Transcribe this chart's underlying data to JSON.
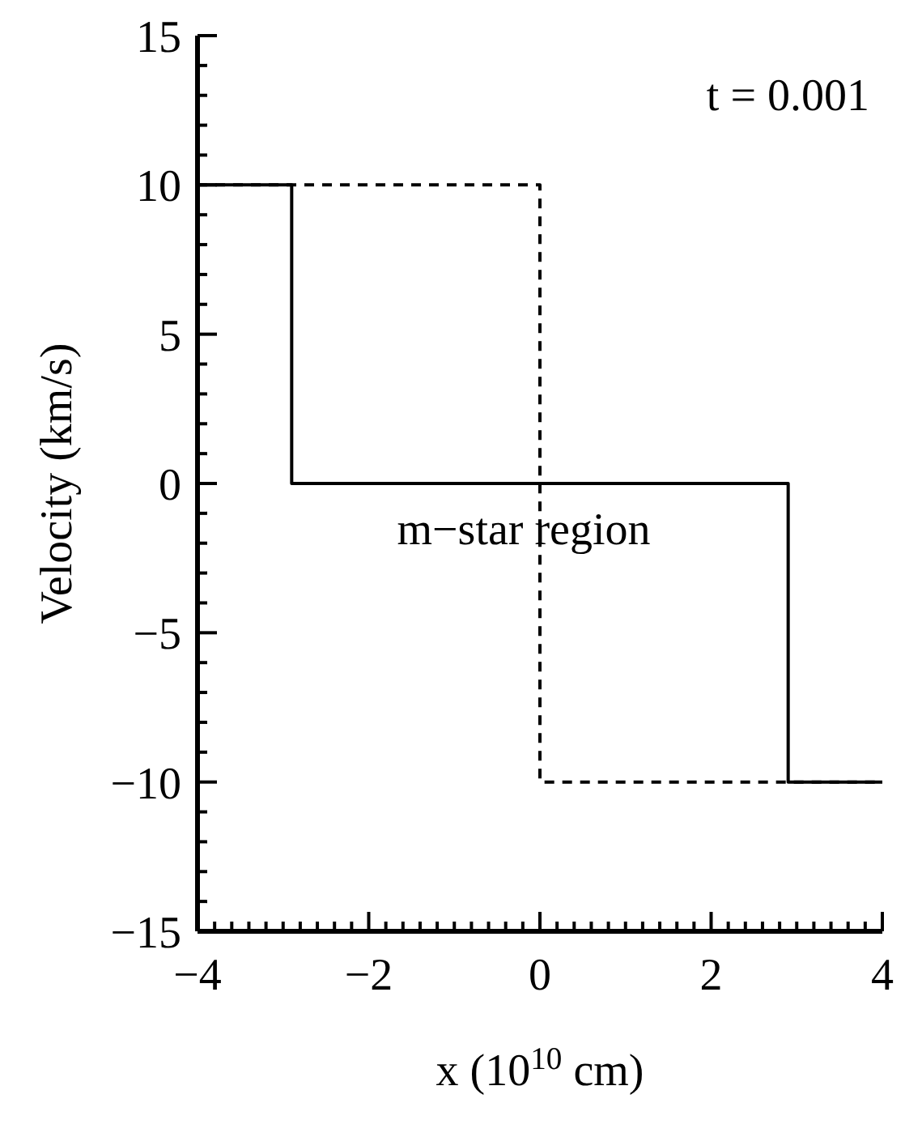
{
  "chart_data": {
    "type": "step",
    "xlabel": "x (10$^{10}$ cm)",
    "ylabel": "Velocity (km/s)",
    "annotations": [
      "t = 0.001",
      "m−star region"
    ],
    "series": [
      {
        "x": [
          -4,
          -2.9,
          2.9,
          4
        ],
        "values": [
          10,
          0,
          -10,
          -10
        ],
        "color": "#000000",
        "line_style": "solid"
      },
      {
        "x": [
          -4,
          0,
          4
        ],
        "values": [
          10,
          -10,
          -10
        ],
        "color": "#000000",
        "line_style": "dashed"
      }
    ],
    "xlim": [
      -4,
      4
    ],
    "xticks": [
      -4,
      {
        "value": -3.8,
        "label": null
      },
      {
        "value": -3.6,
        "label": null
      },
      {
        "value": -3.4,
        "label": null
      },
      {
        "value": -3.2,
        "label": null
      },
      {
        "value": -3,
        "label": null
      },
      {
        "value": -2.8,
        "label": null
      },
      {
        "value": -2.6,
        "label": null
      },
      {
        "value": -2.4,
        "label": null
      },
      {
        "value": -2.2,
        "label": null
      },
      -2,
      {
        "value": -1.8,
        "label": null
      },
      {
        "value": -1.6,
        "label": null
      },
      {
        "value": -1.4,
        "label": null
      },
      {
        "value": -1.2,
        "label": null
      },
      {
        "value": -1,
        "label": null
      },
      {
        "value": -0.8,
        "label": null
      },
      {
        "value": -0.6,
        "label": null
      },
      {
        "value": -0.4,
        "label": null
      },
      {
        "value": -0.2,
        "label": null
      },
      0,
      {
        "value": 0.2,
        "label": null
      },
      {
        "value": 0.4,
        "label": null
      },
      {
        "value": 0.6,
        "label": null
      },
      {
        "value": 0.8,
        "label": null
      },
      {
        "value": 1,
        "label": null
      },
      {
        "value": 1.2,
        "label": null
      },
      {
        "value": 1.4,
        "label": null
      },
      {
        "value": 1.6,
        "label": null
      },
      {
        "value": 1.8,
        "label": null
      },
      2,
      {
        "value": 2.2,
        "label": null
      },
      {
        "value": 2.4,
        "label": null
      },
      {
        "value": 2.6,
        "label": null
      },
      {
        "value": 2.8,
        "label": null
      },
      {
        "value": 3,
        "label": null
      },
      {
        "value": 3.2,
        "label": null
      },
      {
        "value": 3.4,
        "label": null
      },
      {
        "value": 3.6,
        "label": null
      },
      {
        "value": 3.8,
        "label": null
      },
      4
    ],
    "ylim": [
      -15,
      15
    ],
    "yticks": [
      -15,
      {
        "value": -14,
        "label": null
      },
      {
        "value": -13,
        "label": null
      },
      {
        "value": -12,
        "label": null
      },
      {
        "value": -11,
        "label": null
      },
      -10,
      {
        "value": -9,
        "label": null
      },
      {
        "value": -8,
        "label": null
      },
      {
        "value": -7,
        "label": null
      },
      {
        "value": -6,
        "label": null
      },
      -5,
      {
        "value": -4,
        "label": null
      },
      {
        "value": -3,
        "label": null
      },
      {
        "value": -2,
        "label": null
      },
      {
        "value": -1,
        "label": null
      },
      0,
      {
        "value": 1,
        "label": null
      },
      {
        "value": 2,
        "label": null
      },
      {
        "value": 3,
        "label": null
      },
      {
        "value": 4,
        "label": null
      },
      5,
      {
        "value": 6,
        "label": null
      },
      {
        "value": 7,
        "label": null
      },
      {
        "value": 8,
        "label": null
      },
      {
        "value": 9,
        "label": null
      },
      10,
      {
        "value": 11,
        "label": null
      },
      {
        "value": 12,
        "label": null
      },
      {
        "value": 13,
        "label": null
      },
      {
        "value": 14,
        "label": null
      },
      15
    ]
  }
}
